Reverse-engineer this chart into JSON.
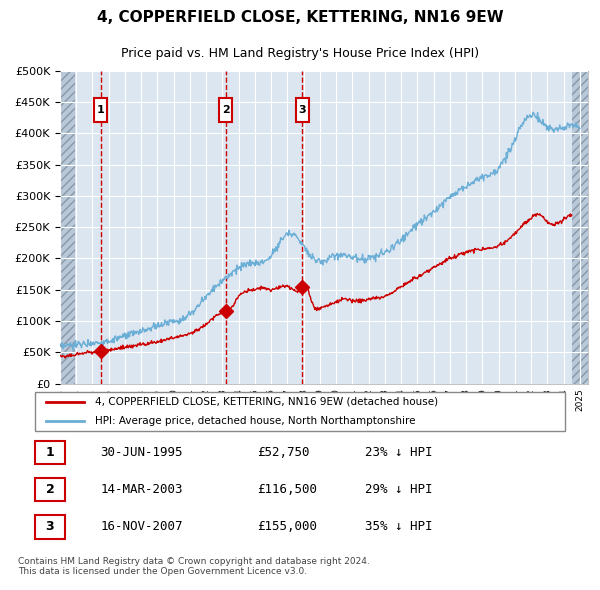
{
  "title": "4, COPPERFIELD CLOSE, KETTERING, NN16 9EW",
  "subtitle": "Price paid vs. HM Land Registry's House Price Index (HPI)",
  "legend_label_red": "4, COPPERFIELD CLOSE, KETTERING, NN16 9EW (detached house)",
  "legend_label_blue": "HPI: Average price, detached house, North Northamptonshire",
  "footnote": "Contains HM Land Registry data © Crown copyright and database right 2024.\nThis data is licensed under the Open Government Licence v3.0.",
  "transactions": [
    {
      "id": 1,
      "date": "1995-06-30",
      "price": 52750,
      "pct": "23% ↓ HPI"
    },
    {
      "id": 2,
      "date": "2003-03-14",
      "price": 116500,
      "pct": "29% ↓ HPI"
    },
    {
      "id": 3,
      "date": "2007-11-16",
      "price": 155000,
      "pct": "35% ↓ HPI"
    }
  ],
  "ylim": [
    0,
    500000
  ],
  "yticks": [
    0,
    50000,
    100000,
    150000,
    200000,
    250000,
    300000,
    350000,
    400000,
    450000,
    500000
  ],
  "hpi_color": "#6baed6",
  "price_color": "#cc0000",
  "vline_color": "#cc0000",
  "background_color": "#dce6f1",
  "plot_bg_color": "#dce6f1",
  "hatch_color": "#b0b8c8",
  "grid_color": "#ffffff",
  "box_color": "#cc0000"
}
